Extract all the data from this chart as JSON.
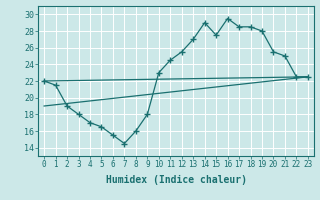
{
  "title": "",
  "xlabel": "Humidex (Indice chaleur)",
  "bg_color": "#cce8e8",
  "grid_color": "#ffffff",
  "line_color": "#1a7070",
  "xlim": [
    -0.5,
    23.5
  ],
  "ylim": [
    13,
    31
  ],
  "xticks": [
    0,
    1,
    2,
    3,
    4,
    5,
    6,
    7,
    8,
    9,
    10,
    11,
    12,
    13,
    14,
    15,
    16,
    17,
    18,
    19,
    20,
    21,
    22,
    23
  ],
  "yticks": [
    14,
    16,
    18,
    20,
    22,
    24,
    26,
    28,
    30
  ],
  "line1_x": [
    0,
    1,
    2,
    3,
    4,
    5,
    6,
    7,
    8,
    9,
    10,
    11,
    12,
    13,
    14,
    15,
    16,
    17,
    18,
    19,
    20,
    21,
    22,
    23
  ],
  "line1_y": [
    22,
    21.5,
    19,
    18,
    17,
    16.5,
    15.5,
    14.5,
    16,
    18,
    23,
    24.5,
    25.5,
    27,
    29,
    27.5,
    29.5,
    28.5,
    28.5,
    28,
    25.5,
    25,
    22.5,
    22.5
  ],
  "line2_x": [
    0,
    23
  ],
  "line2_y": [
    22,
    22.5
  ],
  "line3_x": [
    0,
    23
  ],
  "line3_y": [
    19,
    22.5
  ],
  "xlabel_fontsize": 7,
  "tick_fontsize": 6
}
